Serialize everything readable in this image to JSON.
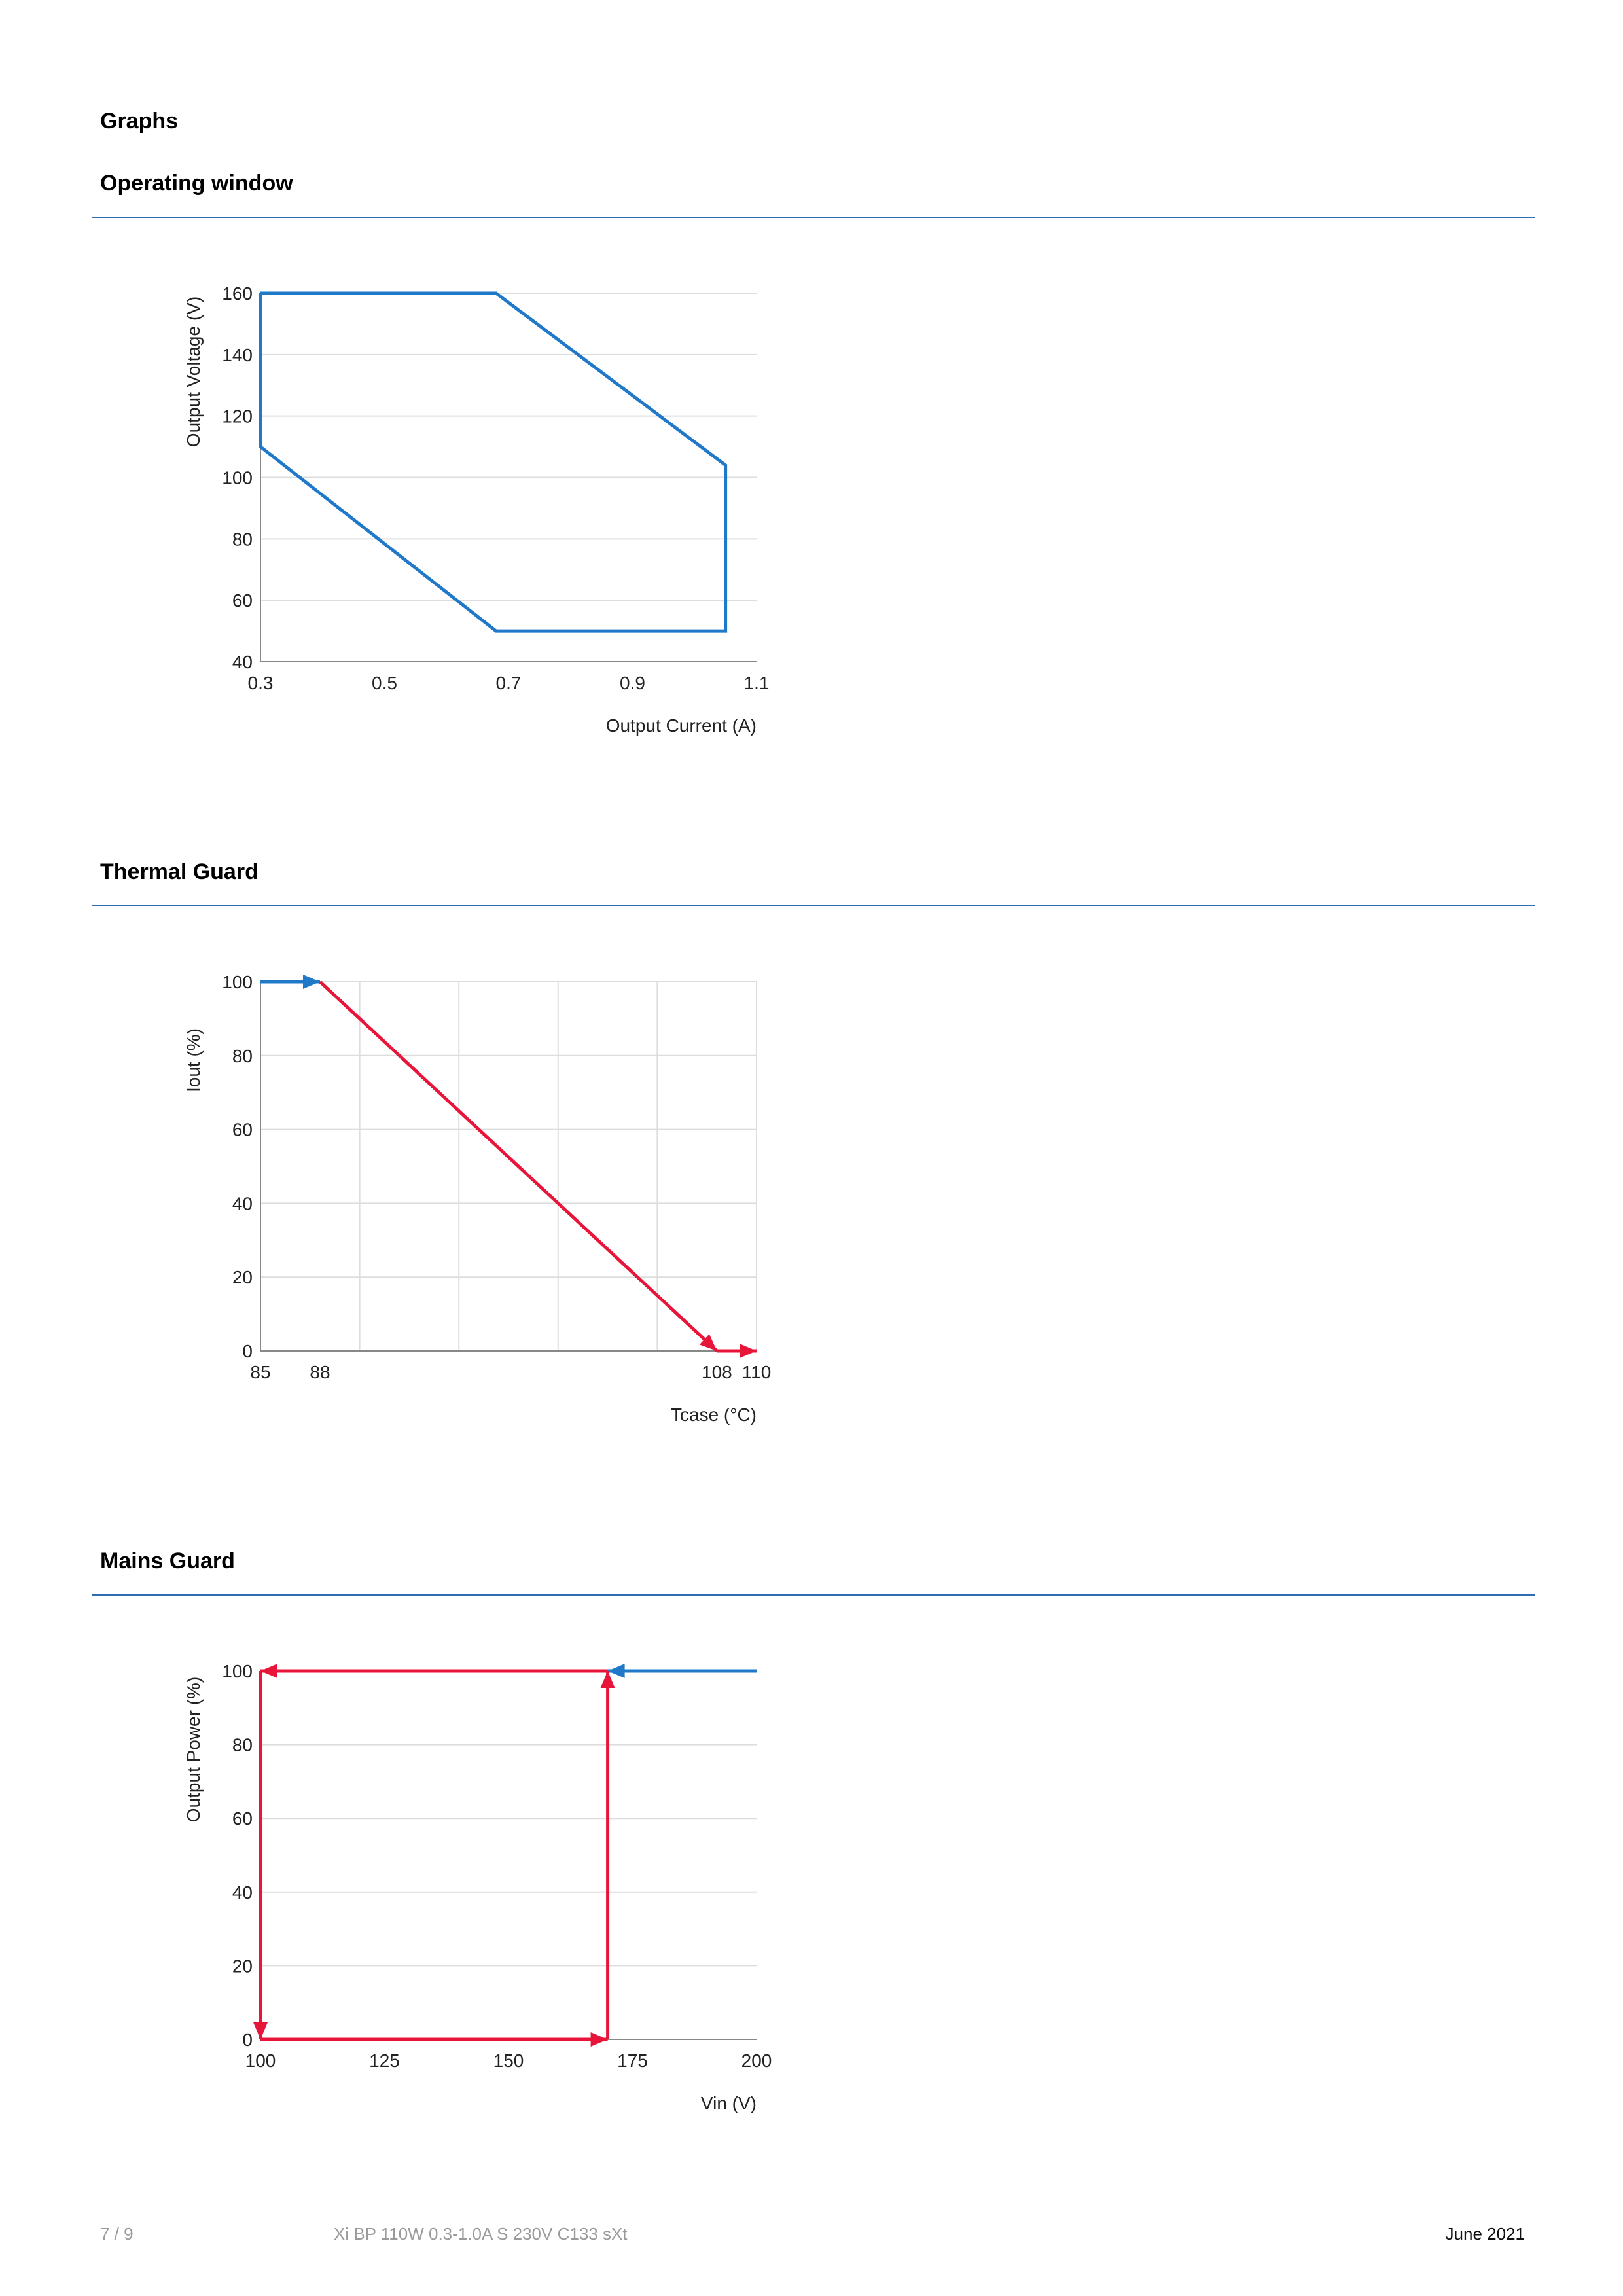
{
  "section_title": "Graphs",
  "sections": [
    {
      "title": "Operating window"
    },
    {
      "title": "Thermal Guard"
    },
    {
      "title": "Mains Guard"
    }
  ],
  "colors": {
    "blue": "#1f78c8",
    "red": "#e8153a",
    "grid": "#dddddd",
    "rule": "#2e6db4"
  },
  "chart_data": [
    {
      "type": "line",
      "xlabel": "Output Current (A)",
      "ylabel": "Output Voltage (V)",
      "xlim": [
        0.3,
        1.1
      ],
      "ylim": [
        40,
        160
      ],
      "x_ticks": [
        0.3,
        0.5,
        0.7,
        0.9,
        1.1
      ],
      "x_tick_labels": [
        "0.3",
        "0.5",
        "0.7",
        "0.9",
        "1.1"
      ],
      "y_ticks": [
        40,
        60,
        80,
        100,
        120,
        140,
        160
      ],
      "y_tick_labels": [
        "40",
        "60",
        "80",
        "100",
        "120",
        "140",
        "160"
      ],
      "grid": "horizontal",
      "series": [
        {
          "color": "#1f78c8",
          "points": [
            [
              0.3,
              160
            ],
            [
              0.68,
              160
            ],
            [
              1.05,
              104
            ],
            [
              1.05,
              50
            ],
            [
              0.68,
              50
            ],
            [
              0.3,
              110
            ],
            [
              0.3,
              160
            ]
          ]
        }
      ]
    },
    {
      "type": "line",
      "xlabel": "Tcase (°C)",
      "ylabel": "Iout (%)",
      "xlim": [
        85,
        110
      ],
      "ylim": [
        0,
        100
      ],
      "x_ticks": [
        85,
        88,
        108,
        110
      ],
      "x_tick_labels": [
        "85",
        "88",
        "108",
        "110"
      ],
      "y_ticks": [
        0,
        20,
        40,
        60,
        80,
        100
      ],
      "y_tick_labels": [
        "0",
        "20",
        "40",
        "60",
        "80",
        "100"
      ],
      "grid": "both",
      "v_grid": [
        90,
        95,
        100,
        105,
        110
      ],
      "series": [
        {
          "color": "#1f78c8",
          "points": [
            [
              85,
              100
            ],
            [
              88,
              100
            ]
          ],
          "arrow_end": true
        },
        {
          "color": "#e8153a",
          "points": [
            [
              88,
              100
            ],
            [
              108,
              0
            ]
          ],
          "arrow_end": true
        },
        {
          "color": "#e8153a",
          "points": [
            [
              108,
              0
            ],
            [
              110,
              0
            ]
          ],
          "arrow_end": true
        }
      ]
    },
    {
      "type": "line",
      "xlabel": "Vin (V)",
      "ylabel": "Output Power (%)",
      "xlim": [
        100,
        200
      ],
      "ylim": [
        0,
        100
      ],
      "x_ticks": [
        100,
        125,
        150,
        175,
        200
      ],
      "x_tick_labels": [
        "100",
        "125",
        "150",
        "175",
        "200"
      ],
      "y_ticks": [
        0,
        20,
        40,
        60,
        80,
        100
      ],
      "y_tick_labels": [
        "0",
        "20",
        "40",
        "60",
        "80",
        "100"
      ],
      "grid": "horizontal",
      "series": [
        {
          "color": "#1f78c8",
          "points": [
            [
              200,
              100
            ],
            [
              170,
              100
            ]
          ],
          "arrow_end": true
        },
        {
          "color": "#e8153a",
          "points": [
            [
              170,
              100
            ],
            [
              100,
              100
            ]
          ],
          "arrow_end": true
        },
        {
          "color": "#e8153a",
          "points": [
            [
              100,
              100
            ],
            [
              100,
              0
            ]
          ],
          "arrow_end": true
        },
        {
          "color": "#e8153a",
          "points": [
            [
              100,
              0
            ],
            [
              170,
              0
            ]
          ],
          "arrow_end": true
        },
        {
          "color": "#e8153a",
          "points": [
            [
              170,
              0
            ],
            [
              170,
              100
            ]
          ],
          "arrow_end": true
        }
      ]
    }
  ],
  "footer": {
    "page": "7 / 9",
    "product": "Xi BP 110W 0.3-1.0A S 230V C133 sXt",
    "date": "June 2021"
  }
}
